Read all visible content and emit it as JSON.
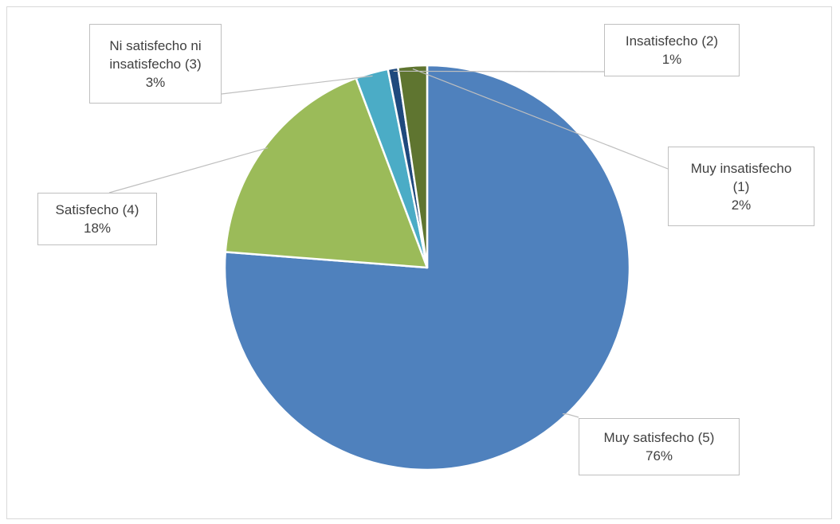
{
  "chart_data": {
    "type": "pie",
    "title": "",
    "slices": [
      {
        "label_lines": [
          "Muy satisfecho (5)"
        ],
        "percent_label": "76%",
        "value": 76,
        "color": "#4f81bd"
      },
      {
        "label_lines": [
          "Satisfecho (4)"
        ],
        "percent_label": "18%",
        "value": 18,
        "color": "#9bbb59"
      },
      {
        "label_lines": [
          "Ni satisfecho ni",
          "insatisfecho (3)"
        ],
        "percent_label": "3%",
        "value": 2.6,
        "color": "#4bacc6"
      },
      {
        "label_lines": [
          "Insatisfecho (2)"
        ],
        "percent_label": "1%",
        "value": 0.8,
        "color": "#1f497d"
      },
      {
        "label_lines": [
          "Muy insatisfecho",
          "(1)"
        ],
        "percent_label": "2%",
        "value": 2.3,
        "color": "#5f7530"
      }
    ],
    "legend": "none",
    "labels": "callouts with leader lines"
  }
}
